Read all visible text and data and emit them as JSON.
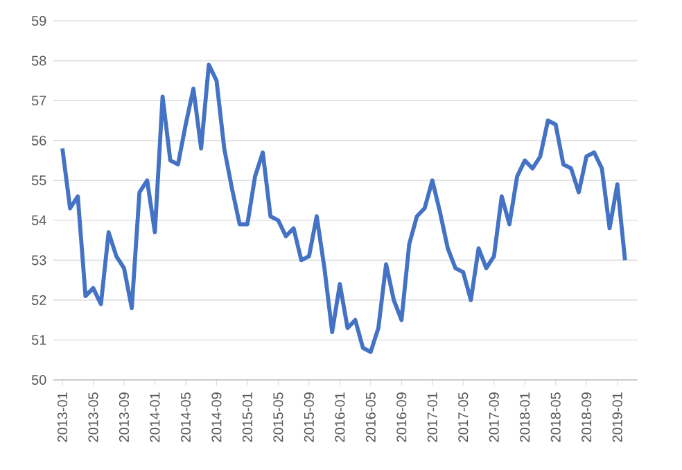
{
  "chart_data": {
    "type": "line",
    "categories": [
      "2013-01",
      null,
      null,
      null,
      "2013-05",
      null,
      null,
      null,
      "2013-09",
      null,
      null,
      null,
      "2014-01",
      null,
      null,
      null,
      "2014-05",
      null,
      null,
      null,
      "2014-09",
      null,
      null,
      null,
      "2015-01",
      null,
      null,
      null,
      "2015-05",
      null,
      null,
      null,
      "2015-09",
      null,
      null,
      null,
      "2016-01",
      null,
      null,
      null,
      "2016-05",
      null,
      null,
      null,
      "2016-09",
      null,
      null,
      null,
      "2017-01",
      null,
      null,
      null,
      "2017-05",
      null,
      null,
      null,
      "2017-09",
      null,
      null,
      null,
      "2018-01",
      null,
      null,
      null,
      "2018-05",
      null,
      null,
      null,
      "2018-09",
      null,
      null,
      null,
      "2019-01",
      null
    ],
    "series": [
      {
        "color": "#4472c4",
        "values": [
          55.8,
          54.3,
          54.6,
          52.1,
          52.3,
          51.9,
          53.7,
          53.1,
          52.8,
          51.8,
          54.7,
          55.0,
          53.7,
          57.1,
          55.5,
          55.4,
          56.4,
          57.3,
          55.8,
          57.9,
          57.5,
          55.8,
          54.8,
          53.9,
          53.9,
          55.1,
          55.7,
          54.1,
          54.0,
          53.6,
          53.8,
          53.0,
          53.1,
          54.1,
          52.8,
          51.2,
          52.4,
          51.3,
          51.5,
          50.8,
          50.7,
          51.3,
          52.9,
          52.0,
          51.5,
          53.4,
          54.1,
          54.3,
          55.0,
          54.2,
          53.3,
          52.8,
          52.7,
          52.0,
          53.3,
          52.8,
          53.1,
          54.6,
          53.9,
          55.1,
          55.5,
          55.3,
          55.6,
          56.5,
          56.4,
          55.4,
          55.3,
          54.7,
          55.6,
          55.7,
          55.3,
          53.8,
          54.9,
          53.0
        ]
      }
    ],
    "ylim": [
      50,
      59
    ],
    "yticks": [
      50,
      51,
      52,
      53,
      54,
      55,
      56,
      57,
      58,
      59
    ],
    "grid": "y",
    "marker": "none",
    "line_style": "solid"
  }
}
